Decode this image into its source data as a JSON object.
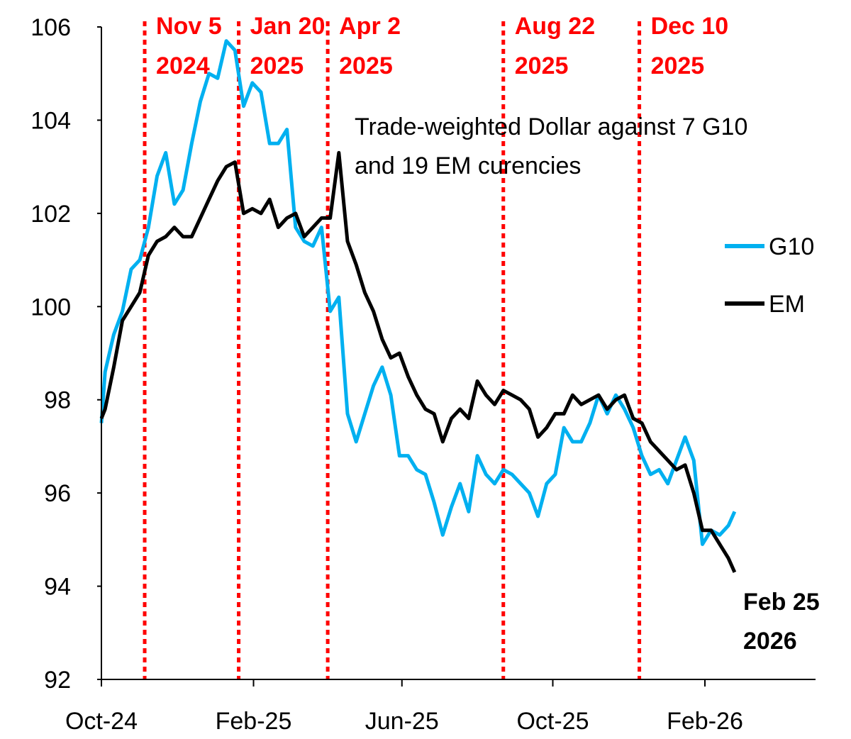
{
  "chart_data": {
    "type": "line",
    "title": "",
    "annotation": [
      "Trade-weighted Dollar against 7 G10",
      "and 19 EM curencies"
    ],
    "end_label": [
      "Feb 25",
      "2026"
    ],
    "xlabel": "",
    "ylabel": "",
    "ylim": [
      92,
      106
    ],
    "yticks": [
      92,
      94,
      96,
      98,
      100,
      102,
      104,
      106
    ],
    "xlim": [
      "2024-10-01",
      "2026-04-15"
    ],
    "xticks": [
      {
        "date": "2024-10-01",
        "label": "Oct-24"
      },
      {
        "date": "2025-02-01",
        "label": "Feb-25"
      },
      {
        "date": "2025-06-01",
        "label": "Jun-25"
      },
      {
        "date": "2025-10-01",
        "label": "Oct-25"
      },
      {
        "date": "2026-02-01",
        "label": "Feb-26"
      }
    ],
    "grid": false,
    "legend_position": "right",
    "events": [
      {
        "date": "2024-11-05",
        "label": [
          "Nov 5",
          "2024"
        ]
      },
      {
        "date": "2025-01-20",
        "label": [
          "Jan 20",
          "2025"
        ]
      },
      {
        "date": "2025-04-02",
        "label": [
          "Apr 2",
          "2025"
        ]
      },
      {
        "date": "2025-08-22",
        "label": [
          "Aug 22",
          "2025"
        ]
      },
      {
        "date": "2025-12-10",
        "label": [
          "Dec 10",
          "2025"
        ]
      }
    ],
    "event_color": "#ff0000",
    "dates": [
      "2024-10-01",
      "2024-10-04",
      "2024-10-11",
      "2024-10-18",
      "2024-10-25",
      "2024-11-01",
      "2024-11-08",
      "2024-11-15",
      "2024-11-22",
      "2024-11-29",
      "2024-12-06",
      "2024-12-13",
      "2024-12-20",
      "2024-12-27",
      "2025-01-03",
      "2025-01-10",
      "2025-01-17",
      "2025-01-24",
      "2025-01-31",
      "2025-02-07",
      "2025-02-14",
      "2025-02-21",
      "2025-02-28",
      "2025-03-07",
      "2025-03-14",
      "2025-03-21",
      "2025-03-28",
      "2025-04-04",
      "2025-04-11",
      "2025-04-18",
      "2025-04-25",
      "2025-05-02",
      "2025-05-09",
      "2025-05-16",
      "2025-05-23",
      "2025-05-30",
      "2025-06-06",
      "2025-06-13",
      "2025-06-20",
      "2025-06-27",
      "2025-07-04",
      "2025-07-11",
      "2025-07-18",
      "2025-07-25",
      "2025-08-01",
      "2025-08-08",
      "2025-08-15",
      "2025-08-22",
      "2025-08-29",
      "2025-09-05",
      "2025-09-12",
      "2025-09-19",
      "2025-09-26",
      "2025-10-03",
      "2025-10-10",
      "2025-10-17",
      "2025-10-24",
      "2025-10-31",
      "2025-11-07",
      "2025-11-14",
      "2025-11-21",
      "2025-11-28",
      "2025-12-05",
      "2025-12-12",
      "2025-12-19",
      "2025-12-26",
      "2026-01-02",
      "2026-01-09",
      "2026-01-16",
      "2026-01-23",
      "2026-01-30",
      "2026-02-06",
      "2026-02-13",
      "2026-02-20",
      "2026-02-25"
    ],
    "series": [
      {
        "name": "G10",
        "color": "#00b0f0",
        "values": [
          97.5,
          98.6,
          99.4,
          99.9,
          100.8,
          101.0,
          101.7,
          102.8,
          103.3,
          102.2,
          102.5,
          103.5,
          104.4,
          105.0,
          104.9,
          105.7,
          105.5,
          104.3,
          104.8,
          104.6,
          103.5,
          103.5,
          103.8,
          101.7,
          101.4,
          101.3,
          101.7,
          99.9,
          100.2,
          97.7,
          97.1,
          97.7,
          98.3,
          98.7,
          98.1,
          96.8,
          96.8,
          96.5,
          96.4,
          95.8,
          95.1,
          95.7,
          96.2,
          95.6,
          96.8,
          96.4,
          96.2,
          96.5,
          96.4,
          96.2,
          96.0,
          95.5,
          96.2,
          96.4,
          97.4,
          97.1,
          97.1,
          97.5,
          98.1,
          97.7,
          98.1,
          97.8,
          97.4,
          96.8,
          96.4,
          96.5,
          96.2,
          96.7,
          97.2,
          96.7,
          94.9,
          95.2,
          95.1,
          95.3,
          95.6
        ]
      },
      {
        "name": "EM",
        "color": "#000000",
        "values": [
          97.6,
          97.8,
          98.7,
          99.7,
          100.0,
          100.3,
          101.1,
          101.4,
          101.5,
          101.7,
          101.5,
          101.5,
          101.9,
          102.3,
          102.7,
          103.0,
          103.1,
          102.0,
          102.1,
          102.0,
          102.3,
          101.7,
          101.9,
          102.0,
          101.5,
          101.7,
          101.9,
          101.9,
          103.3,
          101.4,
          100.9,
          100.3,
          99.9,
          99.3,
          98.9,
          99.0,
          98.5,
          98.1,
          97.8,
          97.7,
          97.1,
          97.6,
          97.8,
          97.6,
          98.4,
          98.1,
          97.9,
          98.2,
          98.1,
          98.0,
          97.8,
          97.2,
          97.4,
          97.7,
          97.7,
          98.1,
          97.9,
          98.0,
          98.1,
          97.8,
          98.0,
          98.1,
          97.6,
          97.5,
          97.1,
          96.9,
          96.7,
          96.5,
          96.6,
          96.0,
          95.2,
          95.2,
          94.9,
          94.6,
          94.3
        ]
      }
    ]
  }
}
